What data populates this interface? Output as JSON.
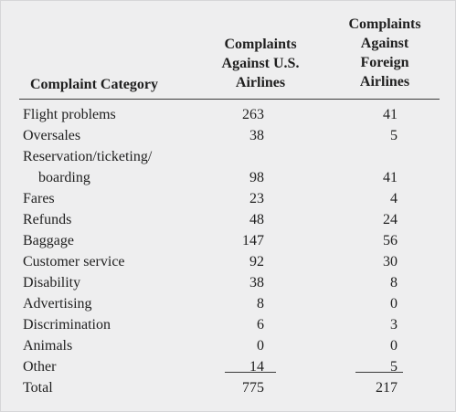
{
  "table": {
    "headers": {
      "category": [
        "Complaint Category"
      ],
      "us": [
        "Complaints",
        "Against U.S.",
        "Airlines"
      ],
      "foreign": [
        "Complaints",
        "Against",
        "Foreign",
        "Airlines"
      ]
    },
    "rows": [
      {
        "category": "Flight problems",
        "us": "263",
        "foreign": "41"
      },
      {
        "category": "Oversales",
        "us": "38",
        "foreign": "5"
      },
      {
        "category": "Reservation/ticketing/",
        "us": "",
        "foreign": ""
      },
      {
        "category": "boarding",
        "us": "98",
        "foreign": "41"
      },
      {
        "category": "Fares",
        "us": "23",
        "foreign": "4"
      },
      {
        "category": "Refunds",
        "us": "48",
        "foreign": "24"
      },
      {
        "category": "Baggage",
        "us": "147",
        "foreign": "56"
      },
      {
        "category": "Customer service",
        "us": "92",
        "foreign": "30"
      },
      {
        "category": "Disability",
        "us": "38",
        "foreign": "8"
      },
      {
        "category": "Advertising",
        "us": "8",
        "foreign": "0"
      },
      {
        "category": "Discrimination",
        "us": "6",
        "foreign": "3"
      },
      {
        "category": "Animals",
        "us": "0",
        "foreign": "0"
      },
      {
        "category": "Other",
        "us": "14",
        "foreign": "5"
      },
      {
        "category": "Total",
        "us": "775",
        "foreign": "217"
      }
    ]
  }
}
